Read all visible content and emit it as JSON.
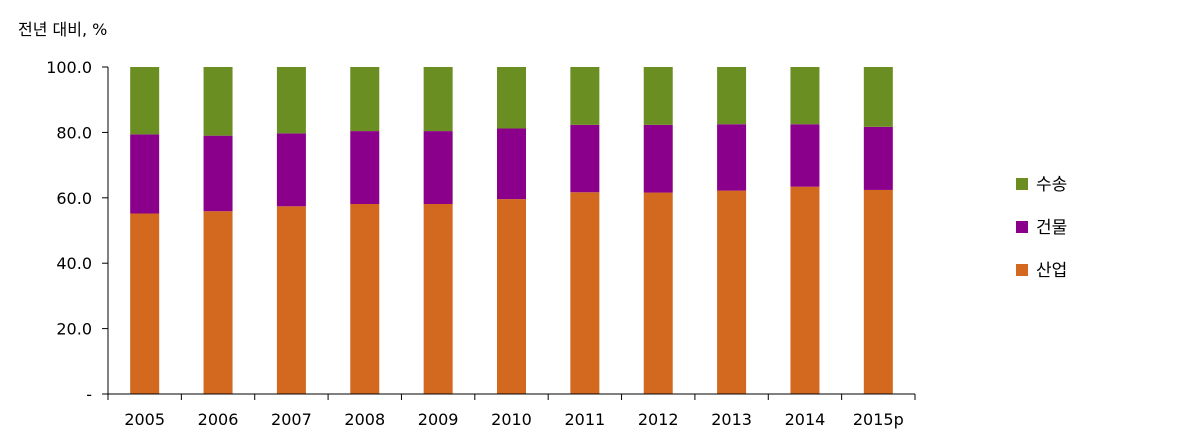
{
  "chart_data": {
    "type": "bar",
    "stacked": true,
    "unit_label": "전년 대비, %",
    "title": "",
    "xlabel": "",
    "ylabel": "",
    "ylim": [
      0,
      100
    ],
    "y_ticks": [
      {
        "value": 0,
        "label": "-"
      },
      {
        "value": 20,
        "label": "20.0"
      },
      {
        "value": 40,
        "label": "40.0"
      },
      {
        "value": 60,
        "label": "60.0"
      },
      {
        "value": 80,
        "label": "80.0"
      },
      {
        "value": 100,
        "label": "100.0"
      }
    ],
    "grid": false,
    "legend_position": "right",
    "categories": [
      "2005",
      "2006",
      "2007",
      "2008",
      "2009",
      "2010",
      "2011",
      "2012",
      "2013",
      "2014",
      "2015p"
    ],
    "series": [
      {
        "name": "산업",
        "color": "#D2691E",
        "values": [
          55.2,
          55.9,
          57.4,
          58.1,
          58.1,
          59.6,
          61.7,
          61.6,
          62.2,
          63.4,
          62.4
        ]
      },
      {
        "name": "건물",
        "color": "#8B008B",
        "values": [
          24.2,
          23.1,
          22.3,
          22.3,
          22.3,
          21.6,
          20.6,
          20.7,
          20.3,
          19.1,
          19.3
        ]
      },
      {
        "name": "수송",
        "color": "#6B8E23",
        "values": [
          20.6,
          21.0,
          20.3,
          19.6,
          19.6,
          18.8,
          17.7,
          17.7,
          17.5,
          17.5,
          18.3
        ]
      }
    ]
  }
}
